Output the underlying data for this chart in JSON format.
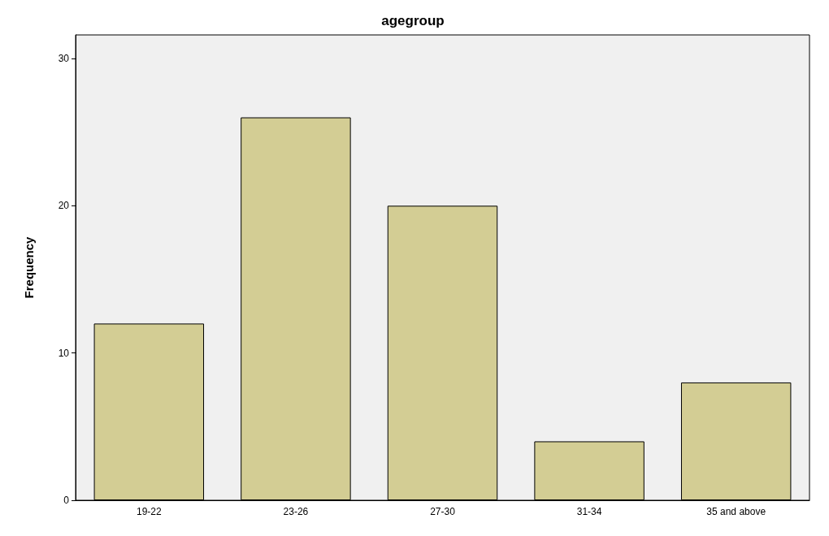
{
  "chart_data": {
    "type": "bar",
    "title": "agegroup",
    "ylabel": "Frequency",
    "categories": [
      "19-22",
      "23-26",
      "27-30",
      "31-34",
      "35 and above"
    ],
    "values": [
      12,
      26,
      20,
      4,
      8
    ],
    "color": "#d3cd94",
    "ylim": [
      0,
      31.6
    ],
    "yticks": [
      0,
      10,
      20,
      30
    ],
    "grid": false
  }
}
